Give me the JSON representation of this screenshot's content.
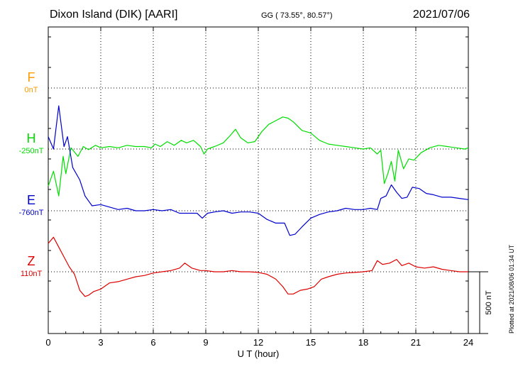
{
  "header": {
    "station": "Dixon Island (DIK)  [AARI]",
    "coords": "GG ( 73.55°,  80.57°)",
    "date": "2021/07/06"
  },
  "footer": {
    "plotted": "Plotted at 2021/08/06 01:34 UT"
  },
  "colors": {
    "F": "#ff9900",
    "H": "#00dd00",
    "E": "#0000cc",
    "Z": "#dd0000",
    "axis": "#000000"
  },
  "chart_data": {
    "type": "line",
    "title": "Dixon Island (DIK)  [AARI]",
    "xlabel": "U T (hour)",
    "ylabel": "",
    "xlim": [
      0,
      24
    ],
    "x_ticks": [
      0,
      3,
      6,
      9,
      12,
      15,
      18,
      21,
      24
    ],
    "x_tick_labels": [
      "0",
      "3",
      "6",
      "9",
      "12",
      "15",
      "18",
      "21",
      "24"
    ],
    "grid": true,
    "scale_bar": {
      "value_nT": 500,
      "label": "500 nT"
    },
    "series": [
      {
        "name": "F",
        "baseline_label": "0nT",
        "color": "#ff9900",
        "x": [],
        "y": []
      },
      {
        "name": "H",
        "baseline_label": "-250nT",
        "color": "#00dd00",
        "x": [
          0,
          0.3,
          0.6,
          0.85,
          1.0,
          1.3,
          1.7,
          2.0,
          2.3,
          2.7,
          3.0,
          3.5,
          4.0,
          4.5,
          5.0,
          5.5,
          5.9,
          6.1,
          6.4,
          6.8,
          7.2,
          7.6,
          7.9,
          8.3,
          8.7,
          8.9,
          9.1,
          9.5,
          10.0,
          10.4,
          10.7,
          11.0,
          11.4,
          11.8,
          12.2,
          12.6,
          13.0,
          13.4,
          13.7,
          14.0,
          14.5,
          15.0,
          15.5,
          16.0,
          16.5,
          17.0,
          17.5,
          18.0,
          18.4,
          18.8,
          19.0,
          19.2,
          19.4,
          19.6,
          19.8,
          20.0,
          20.3,
          20.6,
          20.9,
          21.3,
          21.8,
          22.3,
          22.8,
          23.3,
          23.8,
          24.0
        ],
        "y": [
          -300,
          -180,
          -380,
          -60,
          -200,
          10,
          -60,
          20,
          -5,
          30,
          10,
          20,
          10,
          30,
          20,
          20,
          10,
          40,
          20,
          60,
          30,
          70,
          50,
          70,
          20,
          -40,
          0,
          20,
          50,
          110,
          160,
          90,
          50,
          60,
          140,
          200,
          230,
          260,
          250,
          220,
          150,
          130,
          70,
          40,
          30,
          20,
          10,
          0,
          10,
          -40,
          -10,
          -280,
          -200,
          -100,
          -260,
          -10,
          -160,
          -80,
          -90,
          -30,
          10,
          30,
          20,
          10,
          0,
          10
        ]
      },
      {
        "name": "E",
        "baseline_label": "-760nT",
        "color": "#0000cc",
        "x": [
          0,
          0.3,
          0.6,
          0.9,
          1.1,
          1.4,
          1.8,
          2.1,
          2.5,
          3.0,
          3.5,
          4.0,
          4.5,
          5.0,
          5.5,
          6.0,
          6.5,
          7.0,
          7.5,
          8.0,
          8.5,
          8.8,
          9.1,
          9.5,
          10.0,
          10.5,
          11.0,
          11.5,
          12.0,
          12.5,
          13.0,
          13.5,
          13.8,
          14.1,
          14.5,
          15.0,
          15.5,
          16.0,
          16.5,
          17.0,
          17.5,
          18.0,
          18.4,
          18.8,
          19.0,
          19.3,
          19.6,
          19.9,
          20.2,
          20.5,
          20.8,
          21.2,
          21.6,
          22.0,
          22.5,
          23.0,
          23.5,
          24.0
        ],
        "y": [
          600,
          500,
          850,
          520,
          600,
          350,
          250,
          120,
          40,
          50,
          30,
          10,
          20,
          0,
          0,
          10,
          0,
          10,
          -20,
          -20,
          -20,
          -60,
          -20,
          -10,
          0,
          -20,
          -10,
          -10,
          -20,
          -70,
          -100,
          -100,
          -200,
          -190,
          -130,
          -60,
          -30,
          -10,
          0,
          20,
          10,
          10,
          20,
          10,
          100,
          120,
          210,
          150,
          100,
          110,
          190,
          180,
          140,
          130,
          110,
          110,
          100,
          90
        ]
      },
      {
        "name": "Z",
        "baseline_label": "110nT",
        "color": "#dd0000",
        "x": [
          0,
          0.3,
          0.6,
          0.9,
          1.2,
          1.5,
          1.8,
          2.1,
          2.3,
          2.6,
          3.0,
          3.5,
          4.0,
          4.5,
          5.0,
          5.5,
          6.0,
          6.5,
          7.0,
          7.5,
          7.8,
          8.2,
          8.7,
          9.0,
          9.5,
          10.0,
          10.5,
          11.0,
          11.5,
          12.0,
          12.5,
          13.0,
          13.4,
          13.7,
          14.0,
          14.4,
          14.8,
          15.2,
          15.6,
          16.0,
          16.5,
          17.0,
          17.5,
          18.0,
          18.5,
          18.8,
          19.1,
          19.5,
          19.9,
          20.2,
          20.6,
          21.0,
          21.5,
          22.0,
          22.5,
          23.0,
          23.5,
          24.0
        ],
        "y": [
          230,
          280,
          200,
          120,
          40,
          -20,
          -150,
          -200,
          -190,
          -160,
          -140,
          -90,
          -80,
          -60,
          -40,
          -30,
          -10,
          0,
          10,
          30,
          70,
          30,
          10,
          10,
          0,
          0,
          10,
          0,
          0,
          -5,
          -20,
          -60,
          -120,
          -180,
          -180,
          -150,
          -140,
          -120,
          -60,
          -40,
          -20,
          -10,
          -5,
          0,
          10,
          90,
          60,
          70,
          100,
          50,
          70,
          40,
          30,
          40,
          20,
          10,
          0,
          0
        ]
      }
    ]
  }
}
